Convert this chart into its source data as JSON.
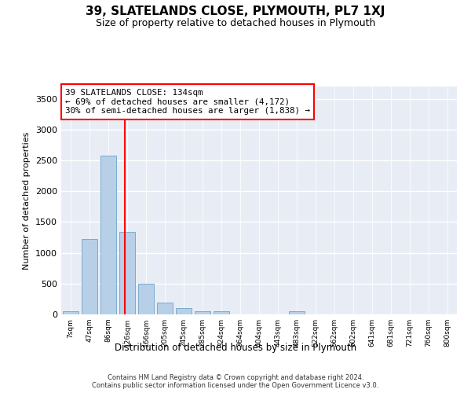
{
  "title": "39, SLATELANDS CLOSE, PLYMOUTH, PL7 1XJ",
  "subtitle": "Size of property relative to detached houses in Plymouth",
  "xlabel": "Distribution of detached houses by size in Plymouth",
  "ylabel": "Number of detached properties",
  "bar_color": "#b8cfe8",
  "bar_edge_color": "#7aaad0",
  "background_color": "#e8edf5",
  "grid_color": "#ffffff",
  "categories": [
    "7sqm",
    "47sqm",
    "86sqm",
    "126sqm",
    "166sqm",
    "205sqm",
    "245sqm",
    "285sqm",
    "324sqm",
    "364sqm",
    "404sqm",
    "443sqm",
    "483sqm",
    "522sqm",
    "562sqm",
    "602sqm",
    "641sqm",
    "681sqm",
    "721sqm",
    "760sqm",
    "800sqm"
  ],
  "values": [
    55,
    1220,
    2580,
    1340,
    500,
    195,
    105,
    50,
    50,
    5,
    5,
    5,
    45,
    0,
    0,
    0,
    0,
    0,
    0,
    0,
    0
  ],
  "ylim": [
    0,
    3700
  ],
  "yticks": [
    0,
    500,
    1000,
    1500,
    2000,
    2500,
    3000,
    3500
  ],
  "vline_x": 2.87,
  "annotation_line1": "39 SLATELANDS CLOSE: 134sqm",
  "annotation_line2": "← 69% of detached houses are smaller (4,172)",
  "annotation_line3": "30% of semi-detached houses are larger (1,838) →",
  "footer_line1": "Contains HM Land Registry data © Crown copyright and database right 2024.",
  "footer_line2": "Contains public sector information licensed under the Open Government Licence v3.0."
}
